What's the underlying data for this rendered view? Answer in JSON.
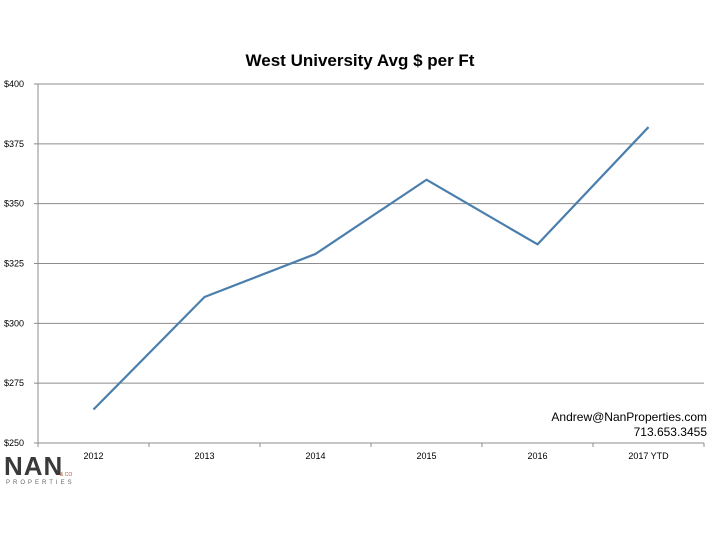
{
  "chart_data": {
    "type": "line",
    "title": "West University Avg $ per Ft",
    "categories": [
      "2012",
      "2013",
      "2014",
      "2015",
      "2016",
      "2017 YTD"
    ],
    "series": [
      {
        "values": [
          264,
          311,
          329,
          360,
          333,
          382
        ]
      }
    ],
    "ylim": [
      250,
      400
    ],
    "yticks": [
      250,
      275,
      300,
      325,
      350,
      375,
      400
    ],
    "ytick_labels": [
      "$250",
      "$275",
      "$300",
      "$325",
      "$350",
      "$375",
      "$400"
    ],
    "grid": true,
    "line_color": "#4a7eac"
  },
  "contact": {
    "email": "Andrew@NanProperties.com",
    "phone": "713.653.3455"
  },
  "logo": {
    "word": "NAN",
    "sub": "PROPERTIES",
    "co": "& CO"
  }
}
